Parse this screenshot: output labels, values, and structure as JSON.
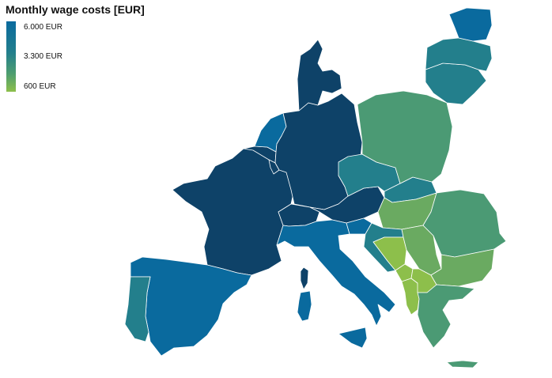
{
  "title": "Monthly wage costs [EUR]",
  "legend": {
    "labels": [
      "6.000 EUR",
      "3.300 EUR",
      "600 EUR"
    ],
    "colors": [
      "#0a6a9e",
      "#237f8c",
      "#8dbf4b"
    ]
  },
  "colors": {
    "very_high": "#0e4268",
    "high": "#0a6a9e",
    "mid": "#237f8c",
    "mid_low": "#4b9a74",
    "low": "#6aaa61",
    "lowest": "#8dbf4b"
  },
  "countries": [
    {
      "name": "France",
      "tier": "very_high"
    },
    {
      "name": "Germany",
      "tier": "very_high"
    },
    {
      "name": "Denmark",
      "tier": "very_high"
    },
    {
      "name": "Belgium",
      "tier": "very_high"
    },
    {
      "name": "Luxembourg",
      "tier": "very_high"
    },
    {
      "name": "Austria",
      "tier": "very_high"
    },
    {
      "name": "Switzerland",
      "tier": "very_high"
    },
    {
      "name": "Corsica",
      "tier": "very_high"
    },
    {
      "name": "Netherlands",
      "tier": "high"
    },
    {
      "name": "Spain",
      "tier": "high"
    },
    {
      "name": "Italy",
      "tier": "high"
    },
    {
      "name": "Sardinia",
      "tier": "high"
    },
    {
      "name": "Sicily",
      "tier": "high"
    },
    {
      "name": "Slovenia",
      "tier": "high"
    },
    {
      "name": "Estonia",
      "tier": "high"
    },
    {
      "name": "Czechia",
      "tier": "mid"
    },
    {
      "name": "Portugal",
      "tier": "mid"
    },
    {
      "name": "Latvia",
      "tier": "mid"
    },
    {
      "name": "Lithuania",
      "tier": "mid"
    },
    {
      "name": "Croatia",
      "tier": "mid"
    },
    {
      "name": "Slovakia",
      "tier": "mid"
    },
    {
      "name": "Poland",
      "tier": "mid_low"
    },
    {
      "name": "Romania",
      "tier": "mid_low"
    },
    {
      "name": "Greece",
      "tier": "mid_low"
    },
    {
      "name": "Crete",
      "tier": "mid_low"
    },
    {
      "name": "Hungary",
      "tier": "low"
    },
    {
      "name": "Bulgaria",
      "tier": "low"
    },
    {
      "name": "Serbia",
      "tier": "low"
    },
    {
      "name": "Bosnia",
      "tier": "lowest"
    },
    {
      "name": "Montenegro",
      "tier": "lowest"
    },
    {
      "name": "Albania",
      "tier": "lowest"
    },
    {
      "name": "North Macedonia",
      "tier": "lowest"
    }
  ]
}
